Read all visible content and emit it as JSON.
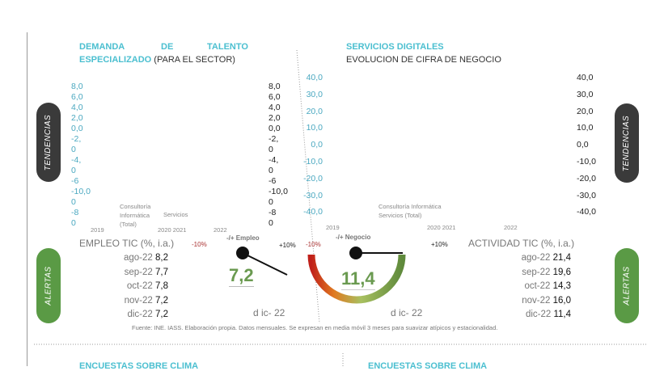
{
  "left": {
    "title_words": [
      "DEMANDA",
      "DE",
      "TALENTO"
    ],
    "title_bold2": "ESPECIALIZADO",
    "title_rest": "(PARA EL SECTOR)",
    "axis_left": [
      "8,0",
      "6,0",
      "4,0",
      "2,0",
      "0,0",
      "-2,",
      "0",
      "-4,",
      "0",
      "-6",
      "-10,0",
      "0",
      "-8",
      "0"
    ],
    "axis_right": [
      "8,0",
      "6,0",
      "4,0",
      "2,0",
      "0,0",
      "-2,",
      "0",
      "-4,",
      "0",
      "-6",
      "-10,0",
      "0",
      "-8",
      "0"
    ],
    "legend": [
      "Consultoría",
      "Informática",
      "(Total)",
      "Servicios"
    ],
    "years": [
      "2019",
      "2020 2021",
      "2022"
    ],
    "gauge_label": "-/+ Empleo",
    "gauge_min": "-10%",
    "gauge_max": "+10%",
    "gauge_value": "7,2",
    "gauge_value_num": 7.2,
    "gauge_date": "d ic- 22",
    "table_title": "EMPLEO TIC (%, i.a.)",
    "rows": [
      {
        "m": "ago-22",
        "v": "8,2"
      },
      {
        "m": "sep-22",
        "v": "7,7"
      },
      {
        "m": "oct-22",
        "v": "7,8"
      },
      {
        "m": "nov-22",
        "v": "7,2"
      },
      {
        "m": "dic-22",
        "v": "7,2"
      }
    ]
  },
  "right": {
    "title": "SERVICIOS DIGITALES",
    "subtitle": "EVOLUCION DE CIFRA DE NEGOCIO",
    "axis": [
      "40,0",
      "30,0",
      "20,0",
      "10,0",
      "0,0",
      "-10,0",
      "-20,0",
      "-30,0",
      "-40,0"
    ],
    "legend": [
      "Consultoría Informática",
      "Servicios (Total)"
    ],
    "years": [
      "2019",
      "2020 2021",
      "2022"
    ],
    "gauge_label": "-/+ Negocio",
    "gauge_min": "-10%",
    "gauge_max": "+10%",
    "gauge_value": "11,4",
    "gauge_value_num": 11.4,
    "gauge_date": "d ic- 22",
    "table_title": "ACTIVIDAD TIC (%, i.a.)",
    "rows": [
      {
        "m": "ago-22",
        "v": "21,4"
      },
      {
        "m": "sep-22",
        "v": "19,6"
      },
      {
        "m": "oct-22",
        "v": "14,3"
      },
      {
        "m": "nov-22",
        "v": "16,0"
      },
      {
        "m": "dic-22",
        "v": "11,4"
      }
    ]
  },
  "pills": {
    "tendencias": "TENDENCIAS",
    "alertas": "ALERTAS"
  },
  "source": "Fuente: INE. IASS. Elaboración propia. Datos mensuales. Se expresan en media móvil 3 meses para suavizar atípicos y estacionalidad.",
  "bottom": {
    "left": "ENCUESTAS SOBRE CLIMA",
    "right": "ENCUESTAS SOBRE CLIMA"
  }
}
